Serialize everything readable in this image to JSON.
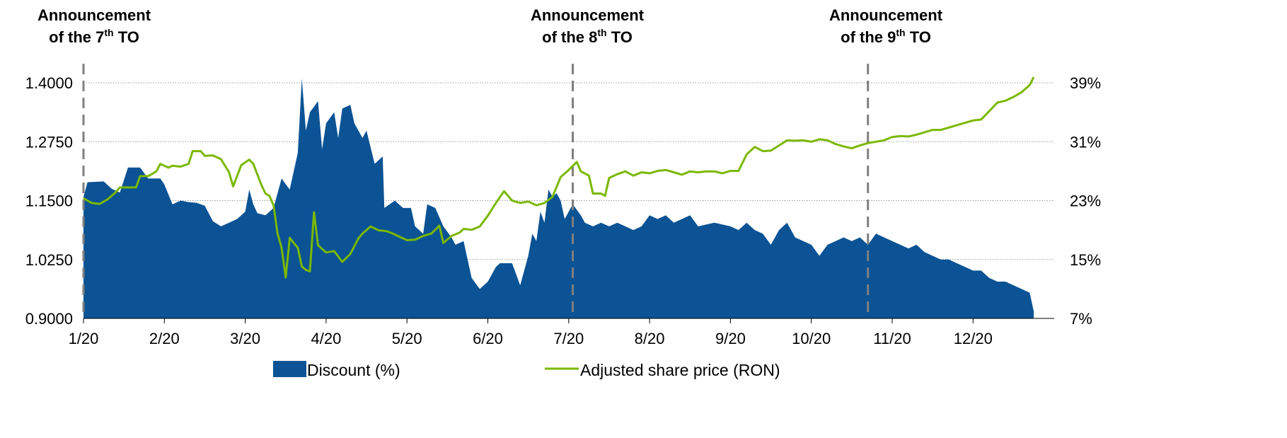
{
  "chart_data": {
    "type": "area+line",
    "x_tick_labels": [
      "1/20",
      "2/20",
      "3/20",
      "4/20",
      "5/20",
      "6/20",
      "7/20",
      "8/20",
      "9/20",
      "10/20",
      "11/20",
      "12/20"
    ],
    "y_left": {
      "ticks": [
        "0.9000",
        "1.0250",
        "1.1500",
        "1.2750",
        "1.4000"
      ],
      "range": [
        0.9,
        1.4
      ]
    },
    "y_right": {
      "ticks": [
        "7%",
        "15%",
        "23%",
        "31%",
        "39%"
      ],
      "range": [
        7,
        39
      ]
    },
    "grid": "horizontal dotted",
    "legend_position": "bottom",
    "annotations": [
      {
        "line1": "Announcement",
        "pre": "of the 7",
        "sup": "th",
        "post": " TO",
        "month": 0.0
      },
      {
        "line1": "Announcement",
        "pre": "of the 8",
        "sup": "th",
        "post": " TO",
        "month": 6.05
      },
      {
        "line1": "Announcement",
        "pre": "of the 9",
        "sup": "th",
        "post": " TO",
        "month": 9.7
      }
    ],
    "series": [
      {
        "name": "Discount (%)",
        "kind": "area",
        "axis": "right",
        "color": "#0b5394",
        "points": [
          [
            0.0,
            23.5
          ],
          [
            0.05,
            25.5
          ],
          [
            0.25,
            25.6
          ],
          [
            0.35,
            24.6
          ],
          [
            0.45,
            24.1
          ],
          [
            0.55,
            27.5
          ],
          [
            0.7,
            27.5
          ],
          [
            0.8,
            26.0
          ],
          [
            0.95,
            26.0
          ],
          [
            1.0,
            25.2
          ],
          [
            1.1,
            22.5
          ],
          [
            1.2,
            23.0
          ],
          [
            1.3,
            22.8
          ],
          [
            1.4,
            22.7
          ],
          [
            1.5,
            22.3
          ],
          [
            1.6,
            20.2
          ],
          [
            1.7,
            19.5
          ],
          [
            1.8,
            20.0
          ],
          [
            1.9,
            20.5
          ],
          [
            2.0,
            21.5
          ],
          [
            2.05,
            24.5
          ],
          [
            2.1,
            22.5
          ],
          [
            2.15,
            21.3
          ],
          [
            2.25,
            21.0
          ],
          [
            2.35,
            22.0
          ],
          [
            2.45,
            26.0
          ],
          [
            2.55,
            24.5
          ],
          [
            2.65,
            29.5
          ],
          [
            2.7,
            39.6
          ],
          [
            2.75,
            32.5
          ],
          [
            2.8,
            35.0
          ],
          [
            2.9,
            36.5
          ],
          [
            2.95,
            30.0
          ],
          [
            3.0,
            33.5
          ],
          [
            3.1,
            35.0
          ],
          [
            3.15,
            31.5
          ],
          [
            3.2,
            35.5
          ],
          [
            3.3,
            36.0
          ],
          [
            3.35,
            33.5
          ],
          [
            3.45,
            31.5
          ],
          [
            3.5,
            32.5
          ],
          [
            3.6,
            28.0
          ],
          [
            3.7,
            29.0
          ],
          [
            3.72,
            22.0
          ],
          [
            3.85,
            23.0
          ],
          [
            3.95,
            22.0
          ],
          [
            4.05,
            22.0
          ],
          [
            4.1,
            19.5
          ],
          [
            4.2,
            18.5
          ],
          [
            4.25,
            22.5
          ],
          [
            4.35,
            22.0
          ],
          [
            4.45,
            19.5
          ],
          [
            4.55,
            18.0
          ],
          [
            4.6,
            17.0
          ],
          [
            4.7,
            17.5
          ],
          [
            4.8,
            12.5
          ],
          [
            4.9,
            11.0
          ],
          [
            5.0,
            12.0
          ],
          [
            5.1,
            14.0
          ],
          [
            5.15,
            14.5
          ],
          [
            5.3,
            14.5
          ],
          [
            5.4,
            11.5
          ],
          [
            5.5,
            15.5
          ],
          [
            5.55,
            18.5
          ],
          [
            5.6,
            17.5
          ],
          [
            5.65,
            21.5
          ],
          [
            5.7,
            20.0
          ],
          [
            5.75,
            24.5
          ],
          [
            5.8,
            23.5
          ],
          [
            5.85,
            24.0
          ],
          [
            5.9,
            23.0
          ],
          [
            5.95,
            20.5
          ],
          [
            6.05,
            22.5
          ],
          [
            6.15,
            21.0
          ],
          [
            6.2,
            20.0
          ],
          [
            6.3,
            19.5
          ],
          [
            6.4,
            20.0
          ],
          [
            6.5,
            19.5
          ],
          [
            6.6,
            20.0
          ],
          [
            6.7,
            19.5
          ],
          [
            6.8,
            19.0
          ],
          [
            6.9,
            19.5
          ],
          [
            7.0,
            21.0
          ],
          [
            7.1,
            20.5
          ],
          [
            7.2,
            21.0
          ],
          [
            7.3,
            20.0
          ],
          [
            7.4,
            20.5
          ],
          [
            7.5,
            21.0
          ],
          [
            7.6,
            19.5
          ],
          [
            7.8,
            20.0
          ],
          [
            8.0,
            19.5
          ],
          [
            8.1,
            19.0
          ],
          [
            8.2,
            20.0
          ],
          [
            8.3,
            19.0
          ],
          [
            8.4,
            18.5
          ],
          [
            8.5,
            17.0
          ],
          [
            8.55,
            18.0
          ],
          [
            8.6,
            19.0
          ],
          [
            8.7,
            20.0
          ],
          [
            8.8,
            18.0
          ],
          [
            8.9,
            17.5
          ],
          [
            9.0,
            17.0
          ],
          [
            9.1,
            15.5
          ],
          [
            9.2,
            17.0
          ],
          [
            9.3,
            17.5
          ],
          [
            9.4,
            18.0
          ],
          [
            9.5,
            17.5
          ],
          [
            9.6,
            18.0
          ],
          [
            9.7,
            17.0
          ],
          [
            9.8,
            18.5
          ],
          [
            9.9,
            18.0
          ],
          [
            10.0,
            17.5
          ],
          [
            10.1,
            17.0
          ],
          [
            10.2,
            16.5
          ],
          [
            10.3,
            17.0
          ],
          [
            10.4,
            16.0
          ],
          [
            10.5,
            15.5
          ],
          [
            10.6,
            15.0
          ],
          [
            10.7,
            15.0
          ],
          [
            10.8,
            14.5
          ],
          [
            10.9,
            14.0
          ],
          [
            11.0,
            13.5
          ],
          [
            11.1,
            13.5
          ],
          [
            11.2,
            12.5
          ],
          [
            11.3,
            12.0
          ],
          [
            11.4,
            12.0
          ],
          [
            11.5,
            11.5
          ],
          [
            11.6,
            11.0
          ],
          [
            11.7,
            10.5
          ],
          [
            11.75,
            8.0
          ]
        ]
      },
      {
        "name": "Adjusted share price (RON)",
        "kind": "line",
        "axis": "left",
        "color": "#7ab800",
        "points": [
          [
            0.0,
            1.155
          ],
          [
            0.1,
            1.145
          ],
          [
            0.2,
            1.143
          ],
          [
            0.3,
            1.153
          ],
          [
            0.4,
            1.168
          ],
          [
            0.45,
            1.178
          ],
          [
            0.55,
            1.178
          ],
          [
            0.6,
            1.178
          ],
          [
            0.65,
            1.178
          ],
          [
            0.7,
            1.202
          ],
          [
            0.8,
            1.202
          ],
          [
            0.9,
            1.212
          ],
          [
            0.95,
            1.228
          ],
          [
            1.05,
            1.22
          ],
          [
            1.1,
            1.224
          ],
          [
            1.2,
            1.222
          ],
          [
            1.3,
            1.228
          ],
          [
            1.35,
            1.255
          ],
          [
            1.45,
            1.255
          ],
          [
            1.5,
            1.245
          ],
          [
            1.6,
            1.246
          ],
          [
            1.7,
            1.238
          ],
          [
            1.8,
            1.21
          ],
          [
            1.85,
            1.18
          ],
          [
            1.95,
            1.225
          ],
          [
            2.05,
            1.237
          ],
          [
            2.1,
            1.228
          ],
          [
            2.2,
            1.183
          ],
          [
            2.25,
            1.165
          ],
          [
            2.3,
            1.16
          ],
          [
            2.35,
            1.14
          ],
          [
            2.4,
            1.08
          ],
          [
            2.45,
            1.05
          ],
          [
            2.5,
            0.987
          ],
          [
            2.55,
            1.071
          ],
          [
            2.6,
            1.06
          ],
          [
            2.65,
            1.05
          ],
          [
            2.7,
            1.01
          ],
          [
            2.75,
            1.003
          ],
          [
            2.8,
            1.0
          ],
          [
            2.85,
            1.125
          ],
          [
            2.9,
            1.055
          ],
          [
            3.0,
            1.04
          ],
          [
            3.1,
            1.043
          ],
          [
            3.2,
            1.02
          ],
          [
            3.3,
            1.037
          ],
          [
            3.4,
            1.07
          ],
          [
            3.45,
            1.08
          ],
          [
            3.55,
            1.095
          ],
          [
            3.65,
            1.087
          ],
          [
            3.75,
            1.085
          ],
          [
            3.8,
            1.082
          ],
          [
            3.9,
            1.074
          ],
          [
            4.0,
            1.066
          ],
          [
            4.1,
            1.067
          ],
          [
            4.2,
            1.075
          ],
          [
            4.3,
            1.08
          ],
          [
            4.35,
            1.088
          ],
          [
            4.4,
            1.097
          ],
          [
            4.45,
            1.06
          ],
          [
            4.55,
            1.075
          ],
          [
            4.65,
            1.082
          ],
          [
            4.7,
            1.09
          ],
          [
            4.8,
            1.088
          ],
          [
            4.9,
            1.095
          ],
          [
            5.0,
            1.118
          ],
          [
            5.1,
            1.145
          ],
          [
            5.2,
            1.17
          ],
          [
            5.3,
            1.15
          ],
          [
            5.4,
            1.145
          ],
          [
            5.5,
            1.148
          ],
          [
            5.6,
            1.14
          ],
          [
            5.7,
            1.145
          ],
          [
            5.8,
            1.158
          ],
          [
            5.9,
            1.2
          ],
          [
            6.0,
            1.215
          ],
          [
            6.1,
            1.232
          ],
          [
            6.15,
            1.212
          ],
          [
            6.25,
            1.203
          ],
          [
            6.3,
            1.165
          ],
          [
            6.4,
            1.165
          ],
          [
            6.45,
            1.16
          ],
          [
            6.5,
            1.198
          ],
          [
            6.6,
            1.206
          ],
          [
            6.7,
            1.212
          ],
          [
            6.8,
            1.203
          ],
          [
            6.9,
            1.21
          ],
          [
            7.0,
            1.208
          ],
          [
            7.1,
            1.213
          ],
          [
            7.2,
            1.215
          ],
          [
            7.3,
            1.21
          ],
          [
            7.4,
            1.205
          ],
          [
            7.5,
            1.212
          ],
          [
            7.6,
            1.21
          ],
          [
            7.7,
            1.212
          ],
          [
            7.8,
            1.212
          ],
          [
            7.9,
            1.208
          ],
          [
            8.0,
            1.213
          ],
          [
            8.1,
            1.213
          ],
          [
            8.2,
            1.248
          ],
          [
            8.3,
            1.264
          ],
          [
            8.4,
            1.255
          ],
          [
            8.5,
            1.256
          ],
          [
            8.6,
            1.267
          ],
          [
            8.7,
            1.278
          ],
          [
            8.8,
            1.277
          ],
          [
            8.9,
            1.278
          ],
          [
            9.0,
            1.275
          ],
          [
            9.1,
            1.28
          ],
          [
            9.2,
            1.278
          ],
          [
            9.3,
            1.27
          ],
          [
            9.4,
            1.265
          ],
          [
            9.5,
            1.261
          ],
          [
            9.6,
            1.267
          ],
          [
            9.7,
            1.272
          ],
          [
            9.8,
            1.275
          ],
          [
            9.9,
            1.278
          ],
          [
            10.0,
            1.285
          ],
          [
            10.1,
            1.287
          ],
          [
            10.2,
            1.286
          ],
          [
            10.3,
            1.29
          ],
          [
            10.4,
            1.295
          ],
          [
            10.5,
            1.3
          ],
          [
            10.6,
            1.3
          ],
          [
            10.7,
            1.305
          ],
          [
            10.8,
            1.31
          ],
          [
            10.9,
            1.315
          ],
          [
            11.0,
            1.32
          ],
          [
            11.1,
            1.322
          ],
          [
            11.2,
            1.34
          ],
          [
            11.3,
            1.358
          ],
          [
            11.4,
            1.362
          ],
          [
            11.5,
            1.37
          ],
          [
            11.6,
            1.38
          ],
          [
            11.7,
            1.395
          ],
          [
            11.75,
            1.412
          ]
        ]
      }
    ]
  }
}
